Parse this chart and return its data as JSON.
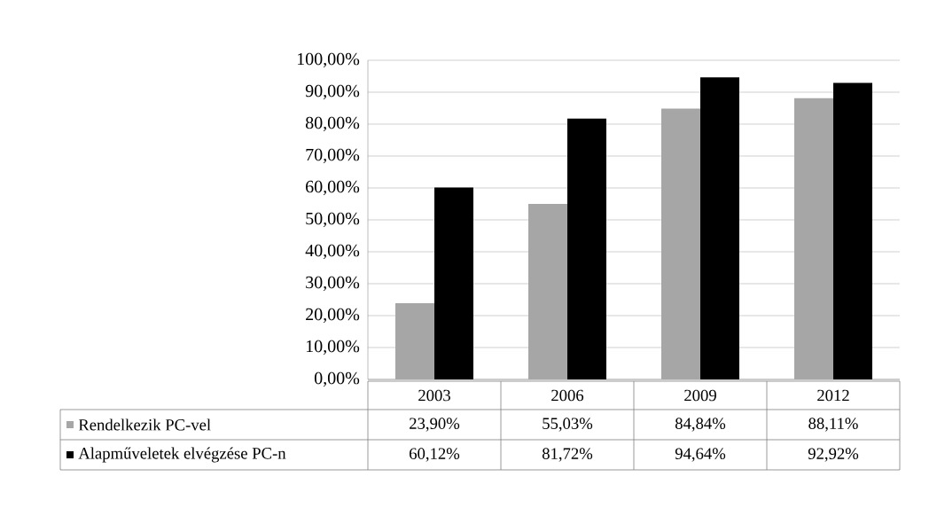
{
  "chart_data": {
    "type": "bar",
    "categories": [
      "2003",
      "2006",
      "2009",
      "2012"
    ],
    "series": [
      {
        "name": "Rendelkezik PC-vel",
        "color": "#a6a6a6",
        "values": [
          23.9,
          55.03,
          84.84,
          88.11
        ],
        "value_labels": [
          "23,90%",
          "55,03%",
          "84,84%",
          "88,11%"
        ]
      },
      {
        "name": "Alapműveletek elvégzése PC-n",
        "color": "#000000",
        "values": [
          60.12,
          81.72,
          94.64,
          92.92
        ],
        "value_labels": [
          "60,12%",
          "81,72%",
          "94,64%",
          "92,92%"
        ]
      }
    ],
    "ylim": [
      0,
      100
    ],
    "yticks": [
      {
        "value": 0,
        "label": "0,00%"
      },
      {
        "value": 10,
        "label": "10,00%"
      },
      {
        "value": 20,
        "label": "20,00%"
      },
      {
        "value": 30,
        "label": "30,00%"
      },
      {
        "value": 40,
        "label": "40,00%"
      },
      {
        "value": 50,
        "label": "50,00%"
      },
      {
        "value": 60,
        "label": "60,00%"
      },
      {
        "value": 70,
        "label": "70,00%"
      },
      {
        "value": 80,
        "label": "80,00%"
      },
      {
        "value": 90,
        "label": "90,00%"
      },
      {
        "value": 100,
        "label": "100,00%"
      }
    ],
    "grid": "y",
    "legend": "bottom"
  }
}
